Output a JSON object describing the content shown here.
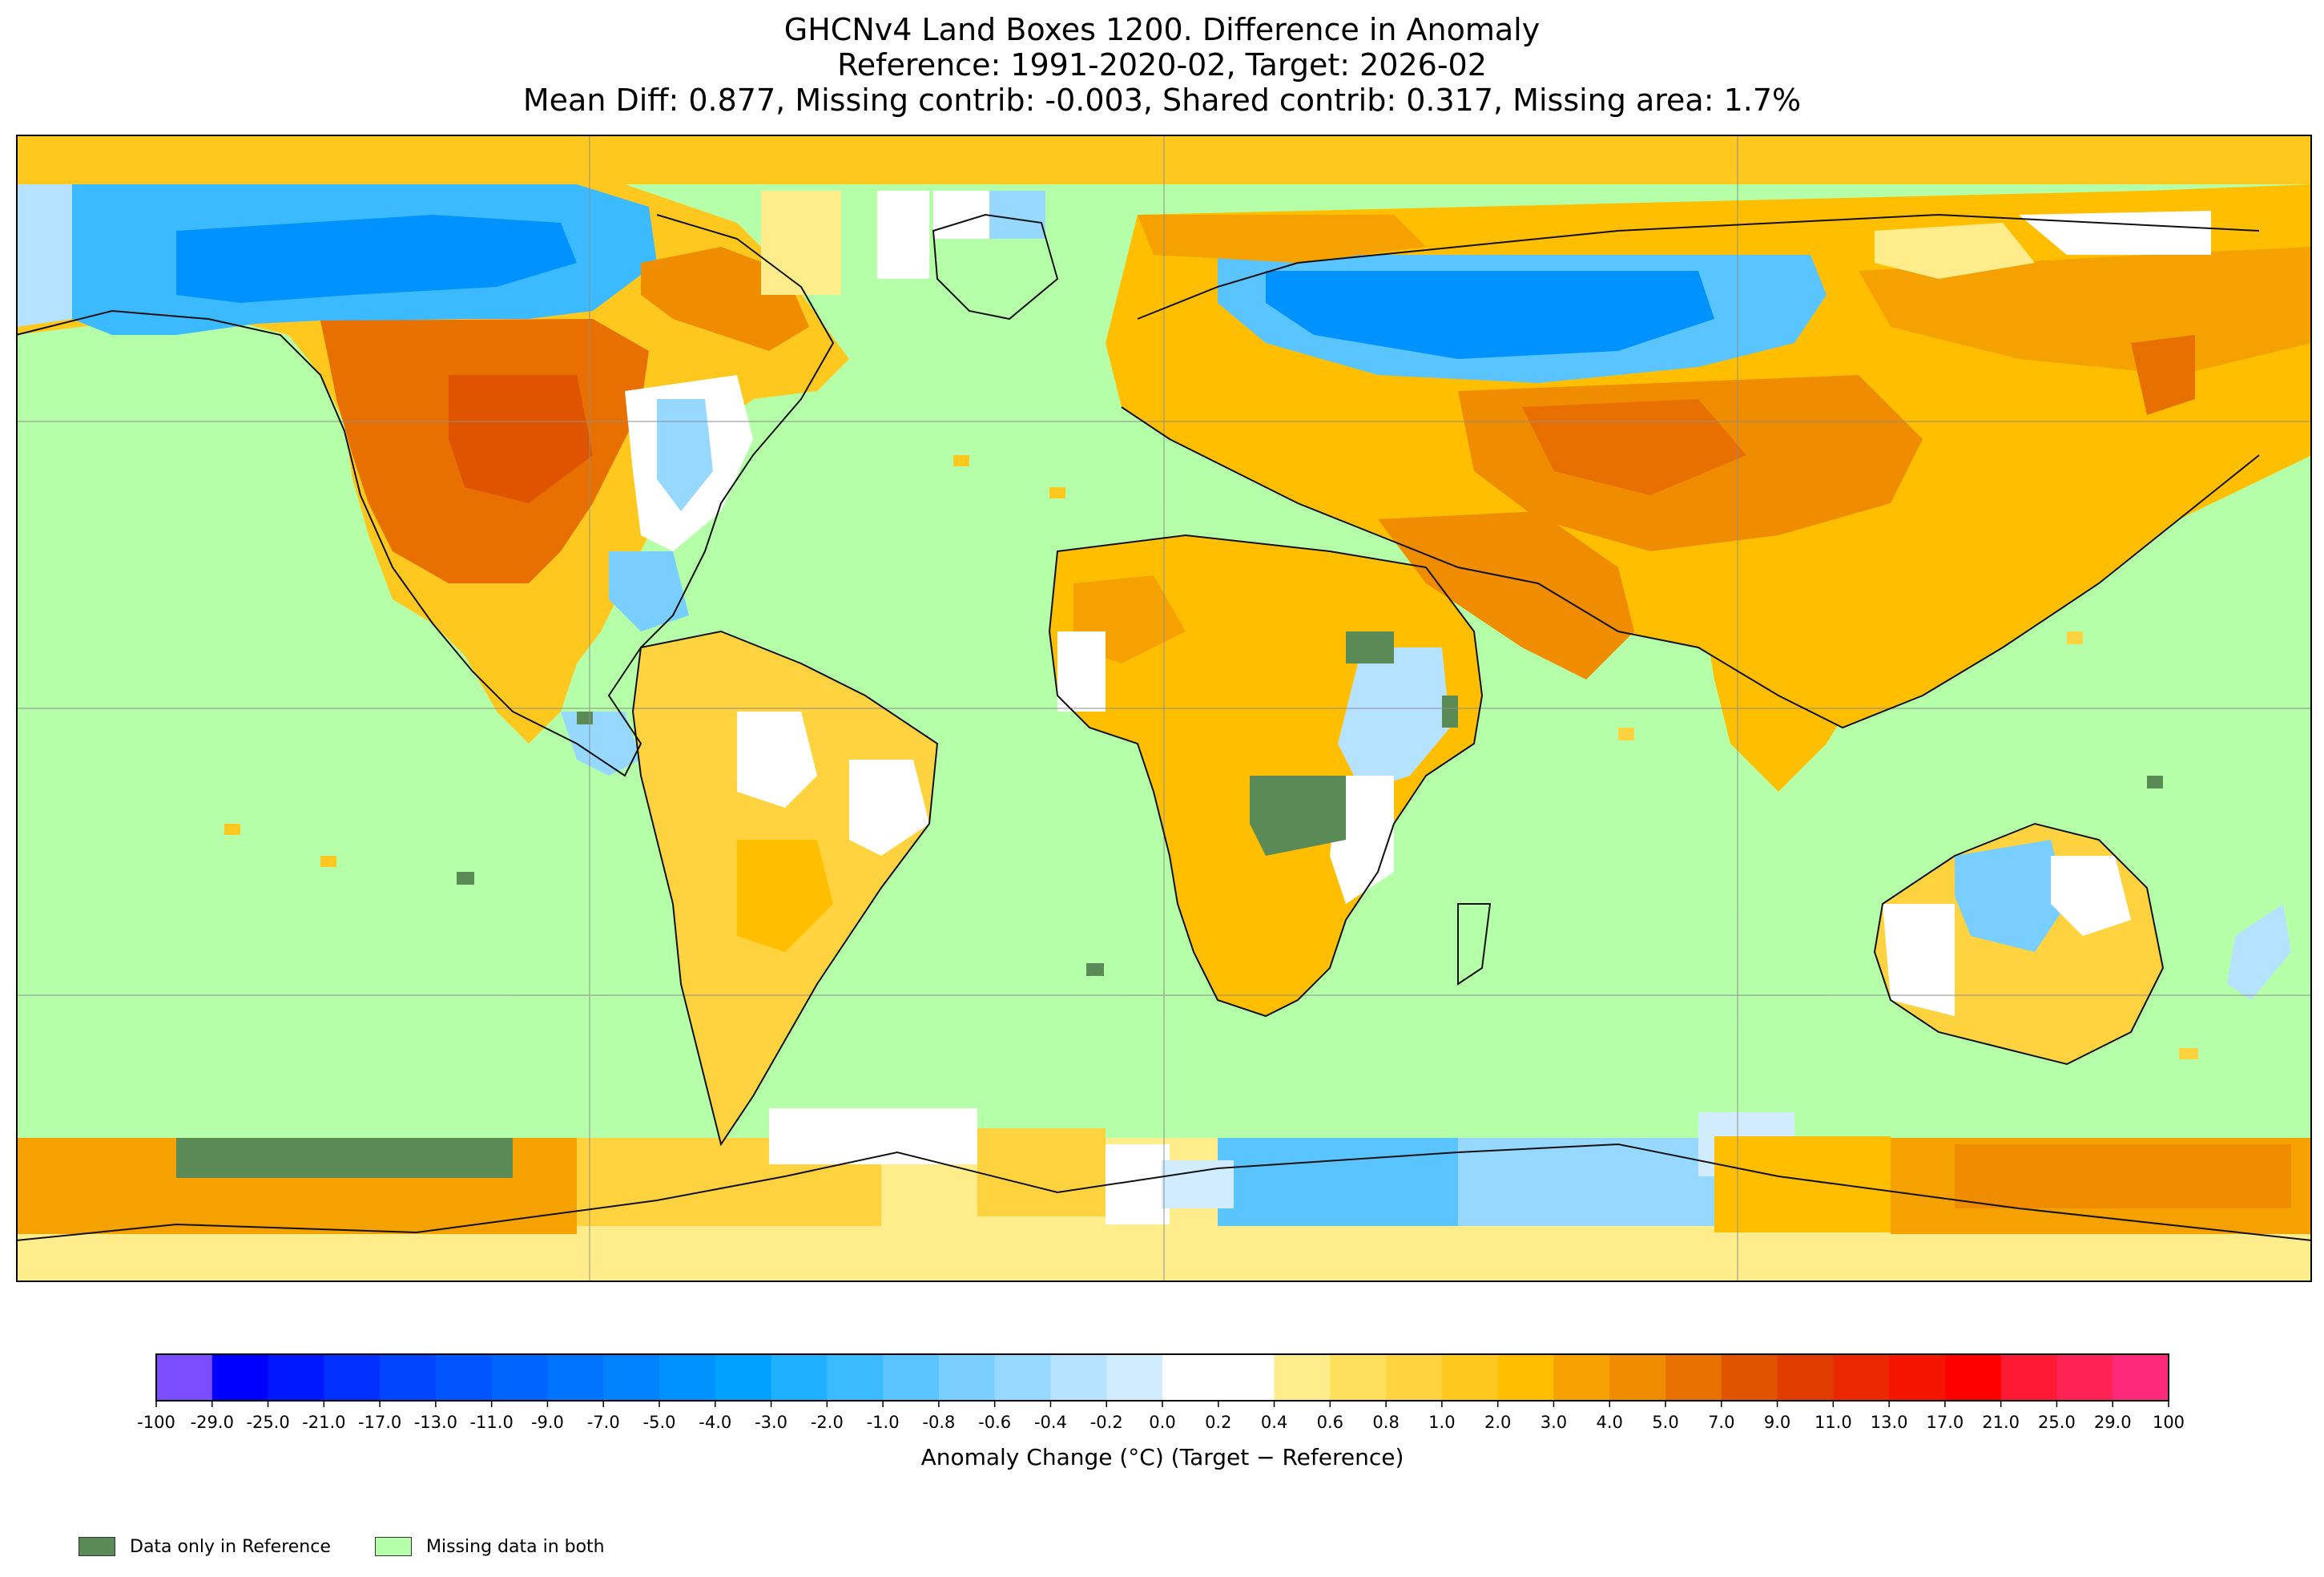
{
  "title": {
    "line1": "GHCNv4 Land Boxes 1200. Difference in Anomaly",
    "line2": "Reference: 1991-2020-02, Target: 2026-02",
    "line3": "Mean Diff: 0.877, Missing contrib: -0.003, Shared contrib: 0.317, Missing area: 1.7%"
  },
  "colorbar": {
    "label": "Anomaly Change (°C) (Target − Reference)",
    "ticks": [
      "-100",
      "-29.0",
      "-25.0",
      "-21.0",
      "-17.0",
      "-13.0",
      "-11.0",
      "-9.0",
      "-7.0",
      "-5.0",
      "-4.0",
      "-3.0",
      "-2.0",
      "-1.0",
      "-0.8",
      "-0.6",
      "-0.4",
      "-0.2",
      "0.0",
      "0.2",
      "0.4",
      "0.6",
      "0.8",
      "1.0",
      "2.0",
      "3.0",
      "4.0",
      "5.0",
      "7.0",
      "9.0",
      "11.0",
      "13.0",
      "17.0",
      "21.0",
      "25.0",
      "29.0",
      "100"
    ],
    "colors": [
      "#7b4dff",
      "#0000ff",
      "#0018ff",
      "#0030ff",
      "#0044ff",
      "#0055ff",
      "#0064ff",
      "#0073ff",
      "#0082ff",
      "#0093ff",
      "#00a2ff",
      "#1fb0ff",
      "#3cbaff",
      "#5ac4ff",
      "#78ceff",
      "#96d8ff",
      "#b4e2ff",
      "#d2ecff",
      "#ffffff",
      "#ffffff",
      "#ffec8b",
      "#ffdf5c",
      "#ffd23f",
      "#ffc81f",
      "#ffbf00",
      "#f5a200",
      "#f08c00",
      "#e87000",
      "#e05400",
      "#e03c00",
      "#eb2800",
      "#f51400",
      "#ff0000",
      "#ff1a33",
      "#ff2255",
      "#ff2a7a",
      "#ff3ca0"
    ]
  },
  "legend": {
    "reference_only_label": "Data only in Reference",
    "reference_only_color": "#5a8a55",
    "missing_label": "Missing data in both",
    "missing_color": "#b6ffa9"
  },
  "map": {
    "projection": "equirectangular",
    "ocean_color": "#b6ffa9"
  }
}
